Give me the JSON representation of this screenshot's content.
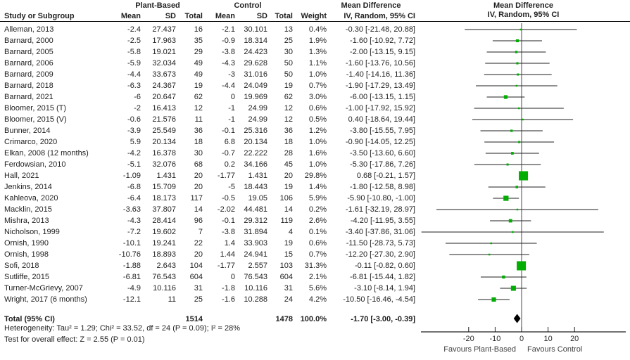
{
  "headers": {
    "group1": "Plant-Based",
    "group2": "Control",
    "study": "Study or Subgroup",
    "mean": "Mean",
    "sd": "SD",
    "total": "Total",
    "weight": "Weight",
    "md_line1": "Mean Difference",
    "md_line2": "IV, Random, 95% CI"
  },
  "footer": {
    "heterogeneity": "Heterogeneity: Tau² = 1.29; Chi² = 33.52, df = 24 (P = 0.09); I² = 28%",
    "overall": "Test for overall effect: Z = 2.55 (P = 0.01)"
  },
  "colors": {
    "square": "#00ad00",
    "line": "#1f1f1f",
    "diamond": "#000000",
    "zero_line": "#4a4a4a"
  },
  "chart_data": {
    "type": "scatter",
    "subtype": "forest_plot",
    "effect_measure": "Mean Difference IV, Random, 95% CI",
    "x_axis": {
      "ticks": [
        -20,
        -10,
        0,
        10,
        20
      ],
      "range_drawn": [
        -38,
        40
      ],
      "label_left": "Favours Plant-Based",
      "label_right": "Favours Control"
    },
    "studies": [
      {
        "label": "Alleman, 2013",
        "m1": "-2.4",
        "sd1": "27.437",
        "n1": "16",
        "m2": "-2.1",
        "sd2": "30.101",
        "n2": "13",
        "weight": "0.4%",
        "w": 0.4,
        "md": -0.3,
        "lo": -21.48,
        "hi": 20.88,
        "text": "-0.30 [-21.48, 20.88]"
      },
      {
        "label": "Barnard, 2000",
        "m1": "-2.5",
        "sd1": "17.963",
        "n1": "35",
        "m2": "-0.9",
        "sd2": "18.314",
        "n2": "25",
        "weight": "1.9%",
        "w": 1.9,
        "md": -1.6,
        "lo": -10.92,
        "hi": 7.72,
        "text": "-1.60 [-10.92, 7.72]"
      },
      {
        "label": "Barnard, 2005",
        "m1": "-5.8",
        "sd1": "19.021",
        "n1": "29",
        "m2": "-3.8",
        "sd2": "24.423",
        "n2": "30",
        "weight": "1.3%",
        "w": 1.3,
        "md": -2.0,
        "lo": -13.15,
        "hi": 9.15,
        "text": "-2.00 [-13.15, 9.15]"
      },
      {
        "label": "Barnard, 2006",
        "m1": "-5.9",
        "sd1": "32.034",
        "n1": "49",
        "m2": "-4.3",
        "sd2": "29.628",
        "n2": "50",
        "weight": "1.1%",
        "w": 1.1,
        "md": -1.6,
        "lo": -13.76,
        "hi": 10.56,
        "text": "-1.60 [-13.76, 10.56]"
      },
      {
        "label": "Barnard, 2009",
        "m1": "-4.4",
        "sd1": "33.673",
        "n1": "49",
        "m2": "-3",
        "sd2": "31.016",
        "n2": "50",
        "weight": "1.0%",
        "w": 1.0,
        "md": -1.4,
        "lo": -14.16,
        "hi": 11.36,
        "text": "-1.40 [-14.16, 11.36]"
      },
      {
        "label": "Barnard, 2018",
        "m1": "-6.3",
        "sd1": "24.367",
        "n1": "19",
        "m2": "-4.4",
        "sd2": "24.049",
        "n2": "19",
        "weight": "0.7%",
        "w": 0.7,
        "md": -1.9,
        "lo": -17.29,
        "hi": 13.49,
        "text": "-1.90 [-17.29, 13.49]"
      },
      {
        "label": "Barnard, 2021",
        "m1": "-6",
        "sd1": "20.647",
        "n1": "62",
        "m2": "0",
        "sd2": "19.969",
        "n2": "62",
        "weight": "3.0%",
        "w": 3.0,
        "md": -6.0,
        "lo": -13.15,
        "hi": 1.15,
        "text": "-6.00 [-13.15, 1.15]"
      },
      {
        "label": "Bloomer, 2015 (T)",
        "m1": "-2",
        "sd1": "16.413",
        "n1": "12",
        "m2": "-1",
        "sd2": "24.99",
        "n2": "12",
        "weight": "0.6%",
        "w": 0.6,
        "md": -1.0,
        "lo": -17.92,
        "hi": 15.92,
        "text": "-1.00 [-17.92, 15.92]"
      },
      {
        "label": "Bloomer, 2015 (V)",
        "m1": "-0.6",
        "sd1": "21.576",
        "n1": "11",
        "m2": "-1",
        "sd2": "24.99",
        "n2": "12",
        "weight": "0.5%",
        "w": 0.5,
        "md": 0.4,
        "lo": -18.64,
        "hi": 19.44,
        "text": "0.40 [-18.64, 19.44]"
      },
      {
        "label": "Bunner, 2014",
        "m1": "-3.9",
        "sd1": "25.549",
        "n1": "36",
        "m2": "-0.1",
        "sd2": "25.316",
        "n2": "36",
        "weight": "1.2%",
        "w": 1.2,
        "md": -3.8,
        "lo": -15.55,
        "hi": 7.95,
        "text": "-3.80 [-15.55, 7.95]"
      },
      {
        "label": "Crimarco, 2020",
        "m1": "5.9",
        "sd1": "20.134",
        "n1": "18",
        "m2": "6.8",
        "sd2": "20.134",
        "n2": "18",
        "weight": "1.0%",
        "w": 1.0,
        "md": -0.9,
        "lo": -14.05,
        "hi": 12.25,
        "text": "-0.90 [-14.05, 12.25]"
      },
      {
        "label": "Elkan, 2008 (12 months)",
        "m1": "-4.2",
        "sd1": "16.378",
        "n1": "30",
        "m2": "-0.7",
        "sd2": "22.222",
        "n2": "28",
        "weight": "1.6%",
        "w": 1.6,
        "md": -3.5,
        "lo": -13.6,
        "hi": 6.6,
        "text": "-3.50 [-13.60, 6.60]"
      },
      {
        "label": "Ferdowsian, 2010",
        "m1": "-5.1",
        "sd1": "32.076",
        "n1": "68",
        "m2": "0.2",
        "sd2": "34.166",
        "n2": "45",
        "weight": "1.0%",
        "w": 1.0,
        "md": -5.3,
        "lo": -17.86,
        "hi": 7.26,
        "text": "-5.30 [-17.86, 7.26]"
      },
      {
        "label": "Hall, 2021",
        "m1": "-1.09",
        "sd1": "1.431",
        "n1": "20",
        "m2": "-1.77",
        "sd2": "1.431",
        "n2": "20",
        "weight": "29.8%",
        "w": 29.8,
        "md": 0.68,
        "lo": -0.21,
        "hi": 1.57,
        "text": "0.68 [-0.21, 1.57]"
      },
      {
        "label": "Jenkins, 2014",
        "m1": "-6.8",
        "sd1": "15.709",
        "n1": "20",
        "m2": "-5",
        "sd2": "18.443",
        "n2": "19",
        "weight": "1.4%",
        "w": 1.4,
        "md": -1.8,
        "lo": -12.58,
        "hi": 8.98,
        "text": "-1.80 [-12.58, 8.98]"
      },
      {
        "label": "Kahleova, 2020",
        "m1": "-6.4",
        "sd1": "18.173",
        "n1": "117",
        "m2": "-0.5",
        "sd2": "19.05",
        "n2": "106",
        "weight": "5.9%",
        "w": 5.9,
        "md": -5.9,
        "lo": -10.8,
        "hi": -1.0,
        "text": "-5.90 [-10.80, -1.00]"
      },
      {
        "label": "Macklin, 2015",
        "m1": "-3.63",
        "sd1": "37.807",
        "n1": "14",
        "m2": "-2.02",
        "sd2": "44.481",
        "n2": "14",
        "weight": "0.2%",
        "w": 0.2,
        "md": -1.61,
        "lo": -32.19,
        "hi": 28.97,
        "text": "-1.61 [-32.19, 28.97]"
      },
      {
        "label": "Mishra, 2013",
        "m1": "-4.3",
        "sd1": "28.414",
        "n1": "96",
        "m2": "-0.1",
        "sd2": "29.312",
        "n2": "119",
        "weight": "2.6%",
        "w": 2.6,
        "md": -4.2,
        "lo": -11.95,
        "hi": 3.55,
        "text": "-4.20 [-11.95, 3.55]"
      },
      {
        "label": "Nicholson, 1999",
        "m1": "-7.2",
        "sd1": "19.602",
        "n1": "7",
        "m2": "-3.8",
        "sd2": "31.894",
        "n2": "4",
        "weight": "0.1%",
        "w": 0.1,
        "md": -3.4,
        "lo": -37.86,
        "hi": 31.06,
        "text": "-3.40 [-37.86, 31.06]"
      },
      {
        "label": "Ornish, 1990",
        "m1": "-10.1",
        "sd1": "19.241",
        "n1": "22",
        "m2": "1.4",
        "sd2": "33.903",
        "n2": "19",
        "weight": "0.6%",
        "w": 0.6,
        "md": -11.5,
        "lo": -28.73,
        "hi": 5.73,
        "text": "-11.50 [-28.73, 5.73]"
      },
      {
        "label": "Ornish, 1998",
        "m1": "-10.76",
        "sd1": "18.893",
        "n1": "20",
        "m2": "1.44",
        "sd2": "24.941",
        "n2": "15",
        "weight": "0.7%",
        "w": 0.7,
        "md": -12.2,
        "lo": -27.3,
        "hi": 2.9,
        "text": "-12.20 [-27.30, 2.90]"
      },
      {
        "label": "Sofi, 2018",
        "m1": "-1.88",
        "sd1": "2.643",
        "n1": "104",
        "m2": "-1.77",
        "sd2": "2.557",
        "n2": "103",
        "weight": "31.3%",
        "w": 31.3,
        "md": -0.11,
        "lo": -0.82,
        "hi": 0.6,
        "text": "-0.11 [-0.82, 0.60]"
      },
      {
        "label": "Sutliffe, 2015",
        "m1": "-6.81",
        "sd1": "76.543",
        "n1": "604",
        "m2": "0",
        "sd2": "76.543",
        "n2": "604",
        "weight": "2.1%",
        "w": 2.1,
        "md": -6.81,
        "lo": -15.44,
        "hi": 1.82,
        "text": "-6.81 [-15.44, 1.82]"
      },
      {
        "label": "Turner-McGrievy, 2007",
        "m1": "-4.9",
        "sd1": "10.116",
        "n1": "31",
        "m2": "-1.8",
        "sd2": "10.116",
        "n2": "31",
        "weight": "5.6%",
        "w": 5.6,
        "md": -3.1,
        "lo": -8.14,
        "hi": 1.94,
        "text": "-3.10 [-8.14, 1.94]"
      },
      {
        "label": "Wright, 2017 (6 months)",
        "m1": "-12.1",
        "sd1": "11",
        "n1": "25",
        "m2": "-1.6",
        "sd2": "10.288",
        "n2": "24",
        "weight": "4.2%",
        "w": 4.2,
        "md": -10.5,
        "lo": -16.46,
        "hi": -4.54,
        "text": "-10.50 [-16.46, -4.54]"
      }
    ],
    "total": {
      "label": "Total (95% CI)",
      "n1": "1514",
      "n2": "1478",
      "weight": "100.0%",
      "md": -1.7,
      "lo": -3.0,
      "hi": -0.39,
      "text": "-1.70 [-3.00, -0.39]"
    },
    "heterogeneity": "Heterogeneity: Tau² = 1.29; Chi² = 33.52, df = 24 (P = 0.09); I² = 28%",
    "overall_effect": "Test for overall effect: Z = 2.55 (P = 0.01)"
  }
}
